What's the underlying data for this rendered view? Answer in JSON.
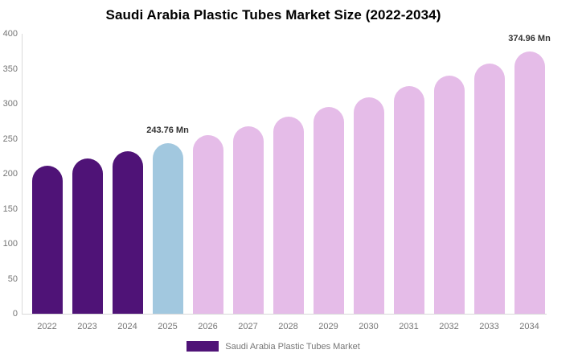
{
  "title": "Saudi Arabia Plastic Tubes Market Size (2022-2034)",
  "legend": {
    "label": "Saudi Arabia Plastic Tubes Market",
    "swatch_color": "#4f1377"
  },
  "colors": {
    "historical_bar": "#4f1377",
    "highlight_bar": "#a2c8df",
    "forecast_bar": "#e5bce8",
    "axis_line": "#d9d9d9",
    "tick_text": "#757575",
    "annotation_text": "#333333",
    "title_text": "#000000"
  },
  "chart_data": {
    "type": "bar",
    "title": "Saudi Arabia Plastic Tubes Market Size (2022-2034)",
    "xlabel": "",
    "ylabel": "",
    "ylim": [
      0,
      400
    ],
    "yticks": [
      0,
      50,
      100,
      150,
      200,
      250,
      300,
      350,
      400
    ],
    "grid": false,
    "legend_position": "bottom",
    "legend_entries": [
      "Saudi Arabia Plastic Tubes Market"
    ],
    "categories": [
      "2022",
      "2023",
      "2024",
      "2025",
      "2026",
      "2027",
      "2028",
      "2029",
      "2030",
      "2031",
      "2032",
      "2033",
      "2034"
    ],
    "values": [
      211.2,
      221.5,
      232.4,
      243.76,
      255.7,
      268.2,
      281.4,
      295.2,
      309.6,
      324.8,
      340.7,
      357.4,
      374.96
    ],
    "bar_roles": [
      "historical",
      "historical",
      "historical",
      "highlight",
      "forecast",
      "forecast",
      "forecast",
      "forecast",
      "forecast",
      "forecast",
      "forecast",
      "forecast",
      "forecast"
    ],
    "annotations": [
      {
        "category": "2025",
        "text": "243.76 Mn"
      },
      {
        "category": "2034",
        "text": "374.96 Mn"
      }
    ]
  }
}
